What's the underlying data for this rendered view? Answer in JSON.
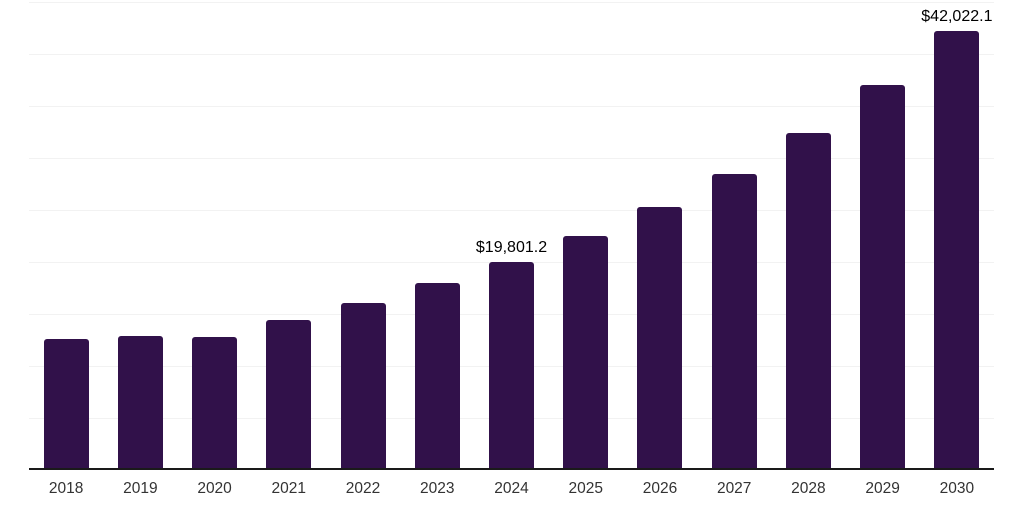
{
  "chart_data": {
    "type": "bar",
    "title": "",
    "xlabel": "",
    "ylabel": "",
    "categories": [
      "2018",
      "2019",
      "2020",
      "2021",
      "2022",
      "2023",
      "2024",
      "2025",
      "2026",
      "2027",
      "2028",
      "2029",
      "2030"
    ],
    "values": [
      12400,
      12700,
      12600,
      14200,
      15900,
      17800,
      19801.2,
      22300,
      25100,
      28300,
      32200,
      36800,
      42022.1
    ],
    "data_labels": {
      "2024": "$19,801.2",
      "2030": "$42,022.1"
    },
    "ylim": [
      0,
      45000
    ],
    "grid_step": 5000,
    "grid": true,
    "legend": false,
    "y_tick_labels_visible": false,
    "colors": {
      "bar": "#31114a",
      "axis_line": "#1a1a1a",
      "gridline": "#f2f2f2",
      "data_label": "#000000",
      "tick_label": "#333333",
      "background": "#ffffff"
    }
  }
}
